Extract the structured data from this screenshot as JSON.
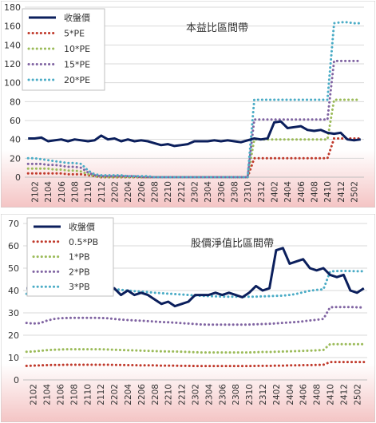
{
  "chart_data": [
    {
      "type": "line",
      "title": "本益比區間帶",
      "categories": [
        "2101",
        "2102",
        "2103",
        "2104",
        "2105",
        "2106",
        "2107",
        "2108",
        "2109",
        "2110",
        "2111",
        "2112",
        "2201",
        "2202",
        "2203",
        "2204",
        "2205",
        "2206",
        "2207",
        "2208",
        "2209",
        "2210",
        "2211",
        "2212",
        "2301",
        "2302",
        "2303",
        "2304",
        "2305",
        "2306",
        "2307",
        "2308",
        "2309",
        "2310",
        "2311",
        "2312",
        "2401",
        "2402",
        "2403",
        "2404",
        "2405",
        "2406",
        "2407",
        "2408",
        "2409",
        "2410",
        "2411",
        "2412",
        "2501",
        "2502",
        "2503"
      ],
      "tick_labels": [
        "2102",
        "2104",
        "2106",
        "2108",
        "2110",
        "2112",
        "2202",
        "2204",
        "2206",
        "2208",
        "2210",
        "2212",
        "2302",
        "2304",
        "2306",
        "2308",
        "2310",
        "2312",
        "2402",
        "2404",
        "2406",
        "2408",
        "2410",
        "2412",
        "2502"
      ],
      "ylim": [
        0,
        180
      ],
      "yticks": [
        0,
        20,
        40,
        60,
        80,
        100,
        120,
        140,
        160,
        180
      ],
      "legend_position": "top-left",
      "series": [
        {
          "name": "收盤價",
          "style": "solid",
          "color": "#0b1f5c",
          "values": [
            41,
            41,
            42,
            38,
            39,
            40,
            38,
            40,
            39,
            38,
            39,
            44,
            40,
            41,
            38,
            40,
            38,
            39,
            38,
            36,
            34,
            35,
            33,
            34,
            35,
            38,
            38,
            38,
            39,
            38,
            39,
            38,
            37,
            39,
            41,
            40,
            41,
            58,
            59,
            52,
            53,
            54,
            50,
            49,
            50,
            47,
            46,
            47,
            40,
            39,
            40
          ]
        },
        {
          "name": "5*PE",
          "style": "dotted",
          "color": "#c0392b",
          "values": [
            4,
            4,
            4,
            4,
            4,
            4,
            3,
            3,
            3,
            2,
            1,
            0,
            0,
            0,
            0,
            0,
            0,
            0,
            0,
            0,
            0,
            0,
            0,
            0,
            0,
            0,
            0,
            0,
            0,
            0,
            0,
            0,
            0,
            0,
            20,
            20,
            20,
            20,
            20,
            20,
            20,
            20,
            20,
            20,
            20,
            20,
            41,
            41,
            41,
            41,
            41
          ]
        },
        {
          "name": "10*PE",
          "style": "dotted",
          "color": "#9bbb59",
          "values": [
            9,
            9,
            9,
            9,
            8,
            8,
            7,
            7,
            6,
            3,
            1,
            0,
            0,
            0,
            0,
            0,
            0,
            0,
            0,
            0,
            0,
            0,
            0,
            0,
            0,
            0,
            0,
            0,
            0,
            0,
            0,
            0,
            0,
            0,
            40,
            40,
            40,
            40,
            40,
            40,
            40,
            40,
            40,
            40,
            40,
            40,
            82,
            82,
            82,
            82,
            82
          ]
        },
        {
          "name": "15*PE",
          "style": "dotted",
          "color": "#8064a2",
          "values": [
            14,
            14,
            14,
            13,
            13,
            12,
            11,
            11,
            10,
            5,
            2,
            1,
            1,
            1,
            1,
            1,
            1,
            0,
            0,
            0,
            0,
            0,
            0,
            0,
            0,
            0,
            0,
            0,
            0,
            0,
            0,
            0,
            0,
            0,
            61,
            61,
            61,
            61,
            61,
            61,
            61,
            61,
            61,
            61,
            61,
            61,
            123,
            123,
            123,
            123,
            123
          ]
        },
        {
          "name": "20*PE",
          "style": "dotted",
          "color": "#4bacc6",
          "values": [
            20,
            20,
            19,
            18,
            17,
            16,
            15,
            15,
            14,
            7,
            3,
            2,
            2,
            2,
            2,
            1,
            1,
            1,
            1,
            0,
            0,
            0,
            0,
            0,
            0,
            0,
            0,
            0,
            0,
            0,
            0,
            0,
            0,
            0,
            82,
            82,
            82,
            82,
            82,
            82,
            82,
            82,
            82,
            82,
            82,
            82,
            163,
            164,
            164,
            163,
            163
          ]
        }
      ]
    },
    {
      "type": "line",
      "title": "股價淨值比區間帶",
      "categories": [
        "2101",
        "2102",
        "2103",
        "2104",
        "2105",
        "2106",
        "2107",
        "2108",
        "2109",
        "2110",
        "2111",
        "2112",
        "2201",
        "2202",
        "2203",
        "2204",
        "2205",
        "2206",
        "2207",
        "2208",
        "2209",
        "2210",
        "2211",
        "2212",
        "2301",
        "2302",
        "2303",
        "2304",
        "2305",
        "2306",
        "2307",
        "2308",
        "2309",
        "2310",
        "2311",
        "2312",
        "2401",
        "2402",
        "2403",
        "2404",
        "2405",
        "2406",
        "2407",
        "2408",
        "2409",
        "2410",
        "2411",
        "2412",
        "2501",
        "2502",
        "2503"
      ],
      "tick_labels": [
        "2102",
        "2104",
        "2106",
        "2108",
        "2110",
        "2112",
        "2202",
        "2204",
        "2206",
        "2208",
        "2210",
        "2212",
        "2302",
        "2304",
        "2306",
        "2308",
        "2310",
        "2312",
        "2402",
        "2404",
        "2406",
        "2408",
        "2410",
        "2412",
        "2502"
      ],
      "ylim": [
        0,
        70
      ],
      "yticks": [
        0,
        10,
        20,
        30,
        40,
        50,
        60,
        70
      ],
      "legend_position": "top-left",
      "series": [
        {
          "name": "收盤價",
          "style": "solid",
          "color": "#0b1f5c",
          "values": [
            41,
            41,
            42,
            38,
            39,
            40,
            38,
            40,
            39,
            38,
            39,
            44,
            40,
            41,
            38,
            40,
            38,
            39,
            38,
            36,
            34,
            35,
            33,
            34,
            35,
            38,
            38,
            38,
            39,
            38,
            39,
            38,
            37,
            39,
            42,
            40,
            41,
            58,
            59,
            52,
            53,
            54,
            50,
            49,
            50,
            47,
            46,
            47,
            40,
            39,
            41
          ]
        },
        {
          "name": "0.5*PB",
          "style": "dotted",
          "color": "#c0392b",
          "values": [
            6.3,
            6.4,
            6.5,
            6.6,
            6.7,
            6.7,
            6.8,
            6.8,
            6.8,
            6.8,
            6.8,
            6.8,
            6.8,
            6.7,
            6.7,
            6.6,
            6.6,
            6.5,
            6.5,
            6.5,
            6.4,
            6.4,
            6.4,
            6.3,
            6.3,
            6.2,
            6.2,
            6.2,
            6.2,
            6.2,
            6.2,
            6.2,
            6.2,
            6.2,
            6.3,
            6.3,
            6.3,
            6.4,
            6.4,
            6.5,
            6.5,
            6.6,
            6.6,
            6.7,
            6.8,
            8,
            8,
            8,
            8,
            8,
            8
          ]
        },
        {
          "name": "1*PB",
          "style": "dotted",
          "color": "#9bbb59",
          "values": [
            12.6,
            12.7,
            13,
            13.3,
            13.5,
            13.6,
            13.7,
            13.7,
            13.7,
            13.7,
            13.7,
            13.7,
            13.6,
            13.5,
            13.4,
            13.3,
            13.2,
            13.1,
            13,
            12.9,
            12.8,
            12.7,
            12.7,
            12.6,
            12.5,
            12.4,
            12.3,
            12.3,
            12.3,
            12.3,
            12.3,
            12.3,
            12.3,
            12.3,
            12.4,
            12.5,
            12.5,
            12.6,
            12.7,
            12.8,
            12.9,
            13,
            13.1,
            13.2,
            13.4,
            16,
            16,
            16,
            16,
            16,
            16
          ]
        },
        {
          "name": "2*PB",
          "style": "dotted",
          "color": "#8064a2",
          "values": [
            25.5,
            25.2,
            25.4,
            26.5,
            27.2,
            27.6,
            27.7,
            27.8,
            27.8,
            27.8,
            27.8,
            27.7,
            27.6,
            27.3,
            27,
            26.8,
            26.6,
            26.5,
            26.3,
            26.1,
            25.9,
            25.8,
            25.6,
            25.4,
            25.2,
            25,
            24.8,
            24.7,
            24.7,
            24.7,
            24.7,
            24.7,
            24.7,
            24.8,
            24.9,
            25,
            25.1,
            25.3,
            25.5,
            25.7,
            25.9,
            26.2,
            26.6,
            26.9,
            27.3,
            32.5,
            32.6,
            32.6,
            32.6,
            32.5,
            32.4
          ]
        },
        {
          "name": "3*PB",
          "style": "dotted",
          "color": "#4bacc6",
          "values": [
            38.5,
            37.8,
            38.5,
            40,
            41,
            41.3,
            41.3,
            41.3,
            41.3,
            41.3,
            41.3,
            41.2,
            41,
            40.7,
            40.3,
            40,
            39.7,
            39.5,
            39.3,
            39,
            38.8,
            38.6,
            38.4,
            38.2,
            38,
            37.8,
            37.6,
            37.5,
            37.4,
            37.3,
            37.2,
            37.2,
            37.2,
            37.2,
            37.3,
            37.4,
            37.5,
            37.6,
            37.7,
            38,
            38.5,
            39.2,
            39.9,
            40.3,
            40.5,
            48.5,
            48.7,
            48.8,
            48.7,
            48.6,
            48.6
          ]
        }
      ]
    }
  ]
}
